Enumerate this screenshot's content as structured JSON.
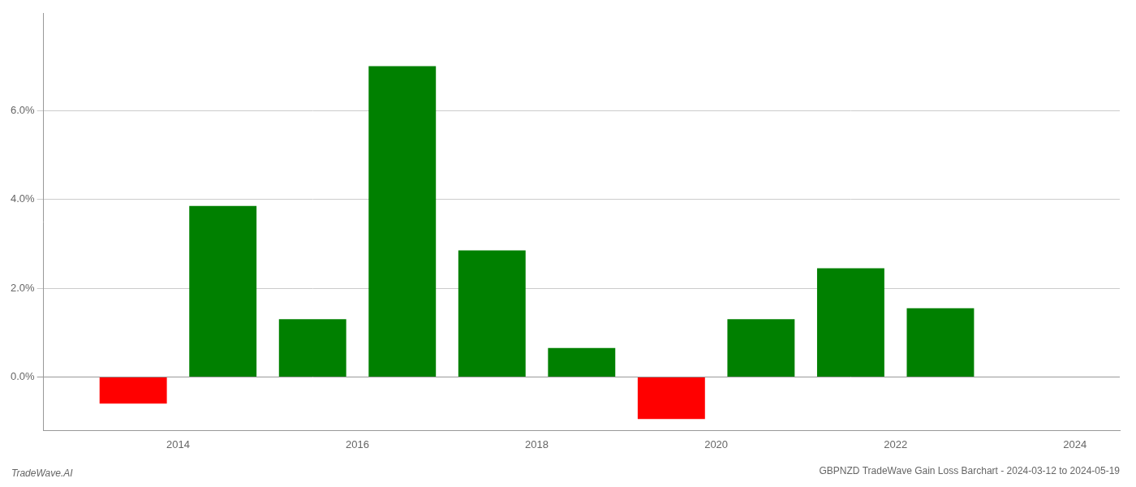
{
  "chart_data": {
    "type": "bar",
    "title": "GBPNZD TradeWave Gain Loss Barchart - 2024-03-12 to 2024-05-19",
    "annotations": [
      "TradeWave.AI"
    ],
    "x": [
      2013.5,
      2014.5,
      2015.5,
      2016.5,
      2017.5,
      2018.5,
      2019.5,
      2020.5,
      2021.5,
      2022.5
    ],
    "values": [
      -0.006,
      0.0385,
      0.013,
      0.07,
      0.0285,
      0.0065,
      -0.0095,
      0.013,
      0.0245,
      0.0155
    ],
    "colors": [
      "#ff0000",
      "#008000",
      "#008000",
      "#008000",
      "#008000",
      "#008000",
      "#ff0000",
      "#008000",
      "#008000",
      "#008000"
    ],
    "xlim": [
      2012.5,
      2024.5
    ],
    "xticks": [
      2014,
      2016,
      2018,
      2020,
      2022,
      2024
    ],
    "ylim": [
      -0.012,
      0.082
    ],
    "yticks": [
      {
        "value": 0.0,
        "label": "0.0%"
      },
      {
        "value": 0.02,
        "label": "2.0%"
      },
      {
        "value": 0.04,
        "label": "4.0%"
      },
      {
        "value": 0.06,
        "label": "6.0%"
      }
    ],
    "grid": "y"
  }
}
